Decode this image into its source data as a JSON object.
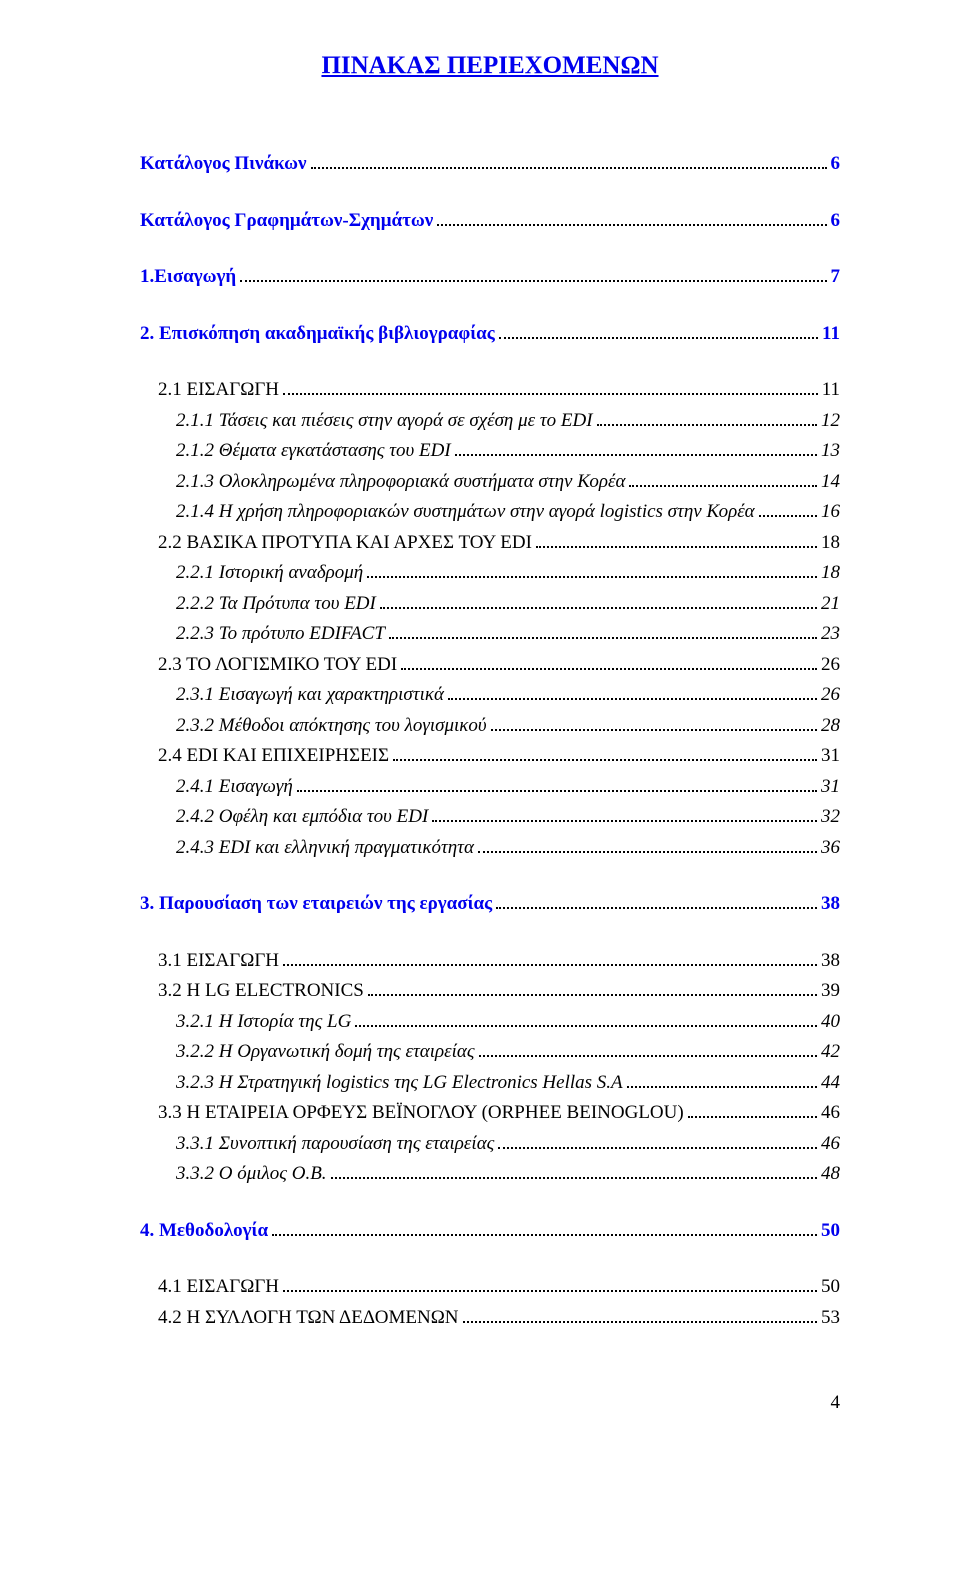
{
  "title": "ΠΙΝΑΚΑΣ ΠΕΡΙΕΧΟΜΕΝΩΝ",
  "footer_page": "4",
  "colors": {
    "link": "#0000ee",
    "text": "#000000",
    "background": "#ffffff"
  },
  "fonts": {
    "family": "Times New Roman",
    "title_size": 25,
    "body_size": 19
  },
  "entries": [
    {
      "label": "Κατάλογος Πινάκων",
      "page": "6",
      "style": "top",
      "indent": 0,
      "gap_after": true
    },
    {
      "label": "Κατάλογος Γραφημάτων-Σχημάτων",
      "page": "6",
      "style": "top",
      "indent": 0,
      "gap_after": true
    },
    {
      "label": "1.Εισαγωγή",
      "page": "7",
      "style": "top",
      "indent": 0,
      "gap_after": true
    },
    {
      "label": "2. Επισκόπηση ακαδημαϊκής βιβλιογραφίας",
      "page": "11",
      "style": "top",
      "indent": 0,
      "gap_after": true
    },
    {
      "label": "2.1 ΕΙΣΑΓΩΓΗ",
      "page": "11",
      "style": "l2",
      "indent": 1
    },
    {
      "label": "2.1.1 Τάσεις και πιέσεις στην αγορά σε σχέση με το EDI",
      "page": "12",
      "style": "l3",
      "indent": 2
    },
    {
      "label": "2.1.2 Θέματα εγκατάστασης του EDI",
      "page": "13",
      "style": "l3",
      "indent": 2
    },
    {
      "label": "2.1.3 Ολοκληρωμένα πληροφοριακά συστήματα στην Κορέα",
      "page": "14",
      "style": "l3",
      "indent": 2
    },
    {
      "label": "2.1.4 Η χρήση πληροφοριακών συστημάτων στην αγορά logistics στην Κορέα",
      "page": "16",
      "style": "l3",
      "indent": 2
    },
    {
      "label": "2.2 ΒΑΣΙΚΑ ΠΡΟΤΥΠΑ ΚΑΙ ΑΡΧΕΣ ΤΟΥ EDI",
      "page": "18",
      "style": "l2",
      "indent": 1
    },
    {
      "label": "2.2.1 Ιστορική αναδρομή",
      "page": "18",
      "style": "l3",
      "indent": 2
    },
    {
      "label": "2.2.2 Τα Πρότυπα του EDI",
      "page": "21",
      "style": "l3",
      "indent": 2
    },
    {
      "label": "2.2.3 Το πρότυπο EDIFACT",
      "page": "23",
      "style": "l3",
      "indent": 2
    },
    {
      "label": "2.3 ΤΟ ΛΟΓΙΣΜΙΚΟ ΤΟΥ EDI",
      "page": "26",
      "style": "l2",
      "indent": 1
    },
    {
      "label": "2.3.1 Εισαγωγή και χαρακτηριστικά",
      "page": "26",
      "style": "l3",
      "indent": 2
    },
    {
      "label": "2.3.2 Μέθοδοι απόκτησης του λογισμικού",
      "page": "28",
      "style": "l3",
      "indent": 2
    },
    {
      "label": "2.4 EDI ΚΑΙ ΕΠΙΧΕΙΡΗΣΕΙΣ",
      "page": "31",
      "style": "l2",
      "indent": 1
    },
    {
      "label": "2.4.1 Εισαγωγή",
      "page": "31",
      "style": "l3",
      "indent": 2
    },
    {
      "label": "2.4.2 Οφέλη και εμπόδια του EDI",
      "page": "32",
      "style": "l3",
      "indent": 2
    },
    {
      "label": "2.4.3 EDI και ελληνική πραγματικότητα",
      "page": "36",
      "style": "l3",
      "indent": 2
    },
    {
      "label": "3. Παρουσίαση των εταιρειών της εργασίας",
      "page": "38",
      "style": "top",
      "indent": 0,
      "gap_after": true,
      "gap_before": true
    },
    {
      "label": "3.1 ΕΙΣΑΓΩΓΗ",
      "page": "38",
      "style": "l2",
      "indent": 1
    },
    {
      "label": "3.2 Η LG ELECTRONICS",
      "page": "39",
      "style": "l2",
      "indent": 1
    },
    {
      "label": "3.2.1 Η Ιστορία της LG",
      "page": "40",
      "style": "l3",
      "indent": 2
    },
    {
      "label": "3.2.2 Η Οργανωτική δομή της εταιρείας",
      "page": "42",
      "style": "l3",
      "indent": 2
    },
    {
      "label": "3.2.3 Η Στρατηγική logistics της LG Electronics Hellas S.A",
      "page": "44",
      "style": "l3",
      "indent": 2
    },
    {
      "label": "3.3 Η ΕΤΑΙΡΕΙΑ ΟΡΦΕΥΣ ΒΕΪΝΟΓΛΟΥ (ORPHEE BEINOGLOU)",
      "page": "46",
      "style": "l2",
      "indent": 1
    },
    {
      "label": "3.3.1 Συνοπτική παρουσίαση της εταιρείας",
      "page": "46",
      "style": "l3",
      "indent": 2
    },
    {
      "label": "3.3.2 Ο όμιλος  Ο.Β.",
      "page": "48",
      "style": "l3",
      "indent": 2
    },
    {
      "label": "4. Μεθοδολογία",
      "page": "50",
      "style": "top",
      "indent": 0,
      "gap_after": true,
      "gap_before": true
    },
    {
      "label": "4.1 ΕΙΣΑΓΩΓΗ",
      "page": "50",
      "style": "l2",
      "indent": 1
    },
    {
      "label": "4.2 Η ΣΥΛΛΟΓΗ ΤΩΝ ΔΕΔΟΜΕΝΩΝ",
      "page": "53",
      "style": "l2",
      "indent": 1
    }
  ]
}
